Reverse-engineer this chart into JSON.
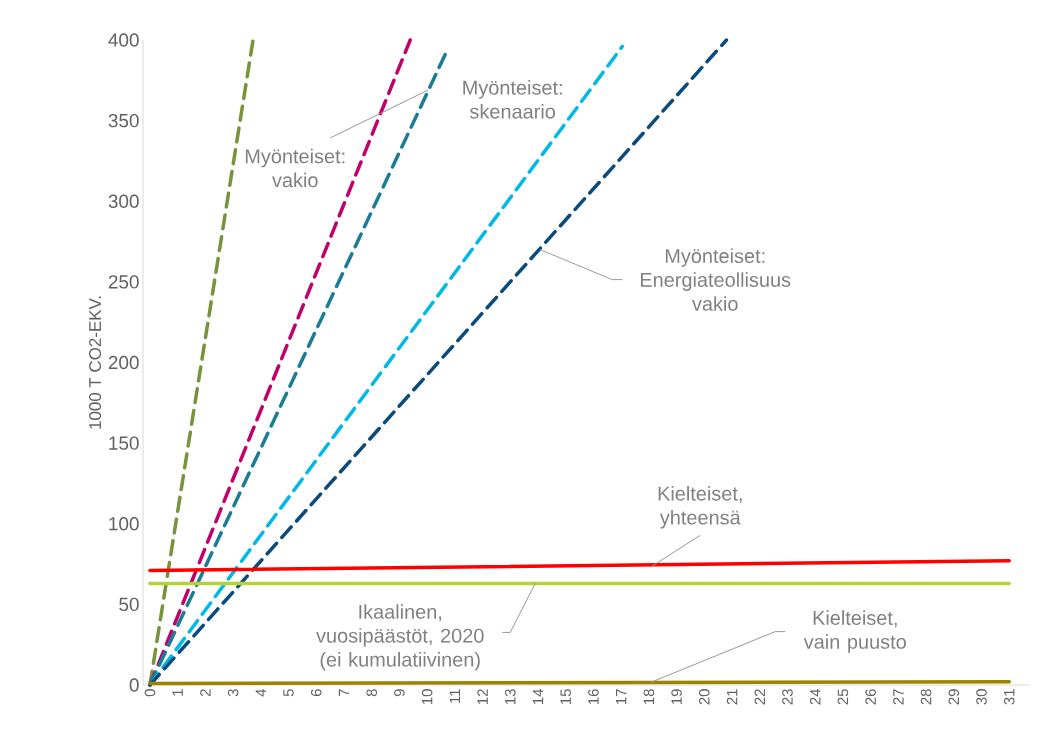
{
  "chart_data": {
    "type": "line",
    "ylabel": "1000 T CO2-EKV.",
    "xlim": [
      -0.25,
      31.75
    ],
    "xticks": [
      0,
      1,
      2,
      3,
      4,
      5,
      6,
      7,
      8,
      9,
      10,
      11,
      12,
      13,
      14,
      15,
      16,
      17,
      18,
      19,
      20,
      21,
      22,
      23,
      24,
      25,
      26,
      27,
      28,
      29,
      30,
      31
    ],
    "ylim": [
      0,
      400
    ],
    "yticks": [
      0,
      50,
      100,
      150,
      200,
      250,
      300,
      350,
      400
    ],
    "grid": false,
    "series": [
      {
        "color": "#77933c",
        "line_style": "dashed",
        "x": [
          0,
          3.72
        ],
        "values": [
          0,
          400
        ]
      },
      {
        "color": "#c0006b",
        "line_style": "dashed",
        "x": [
          0,
          9.39
        ],
        "values": [
          0,
          400
        ]
      },
      {
        "color": "#1b7c96",
        "line_style": "dashed",
        "x": [
          0,
          10.76
        ],
        "values": [
          0,
          395
        ]
      },
      {
        "color": "#00b9e6",
        "line_style": "dashed",
        "x": [
          0,
          17.04
        ],
        "values": [
          0,
          396
        ]
      },
      {
        "color": "#0b4a7c",
        "line_style": "dashed",
        "x": [
          0,
          20.8
        ],
        "values": [
          0,
          400
        ]
      },
      {
        "color": "#ff0000",
        "line_style": "solid",
        "x": [
          0,
          31
        ],
        "values": [
          71,
          77
        ]
      },
      {
        "color": "#b5d334",
        "line_style": "solid",
        "x": [
          0,
          31
        ],
        "values": [
          63,
          63
        ]
      },
      {
        "color": "#9b8500",
        "line_style": "solid",
        "x": [
          0,
          31
        ],
        "values": [
          1,
          2
        ]
      }
    ],
    "annotations": [
      {
        "text": "Myönteiset: vakio",
        "x": 10.04,
        "y": 369
      },
      {
        "text": "Myönteiset: skenaario",
        "x": 15.9,
        "y": 370
      },
      {
        "text": "Myönteiset: Energiateollisuus vakio",
        "x": 14.08,
        "y": 270
      },
      {
        "text": "Kielteiset, yhteensä",
        "x": 18.05,
        "y": 73
      },
      {
        "text": "Ikaalinen, vuosipäästöt, 2020 (ei kumulatiivinen)",
        "x": 13.9,
        "y": 63
      },
      {
        "text": "Kielteiset, vain puusto",
        "x": 18.05,
        "y": 1.5
      }
    ]
  }
}
